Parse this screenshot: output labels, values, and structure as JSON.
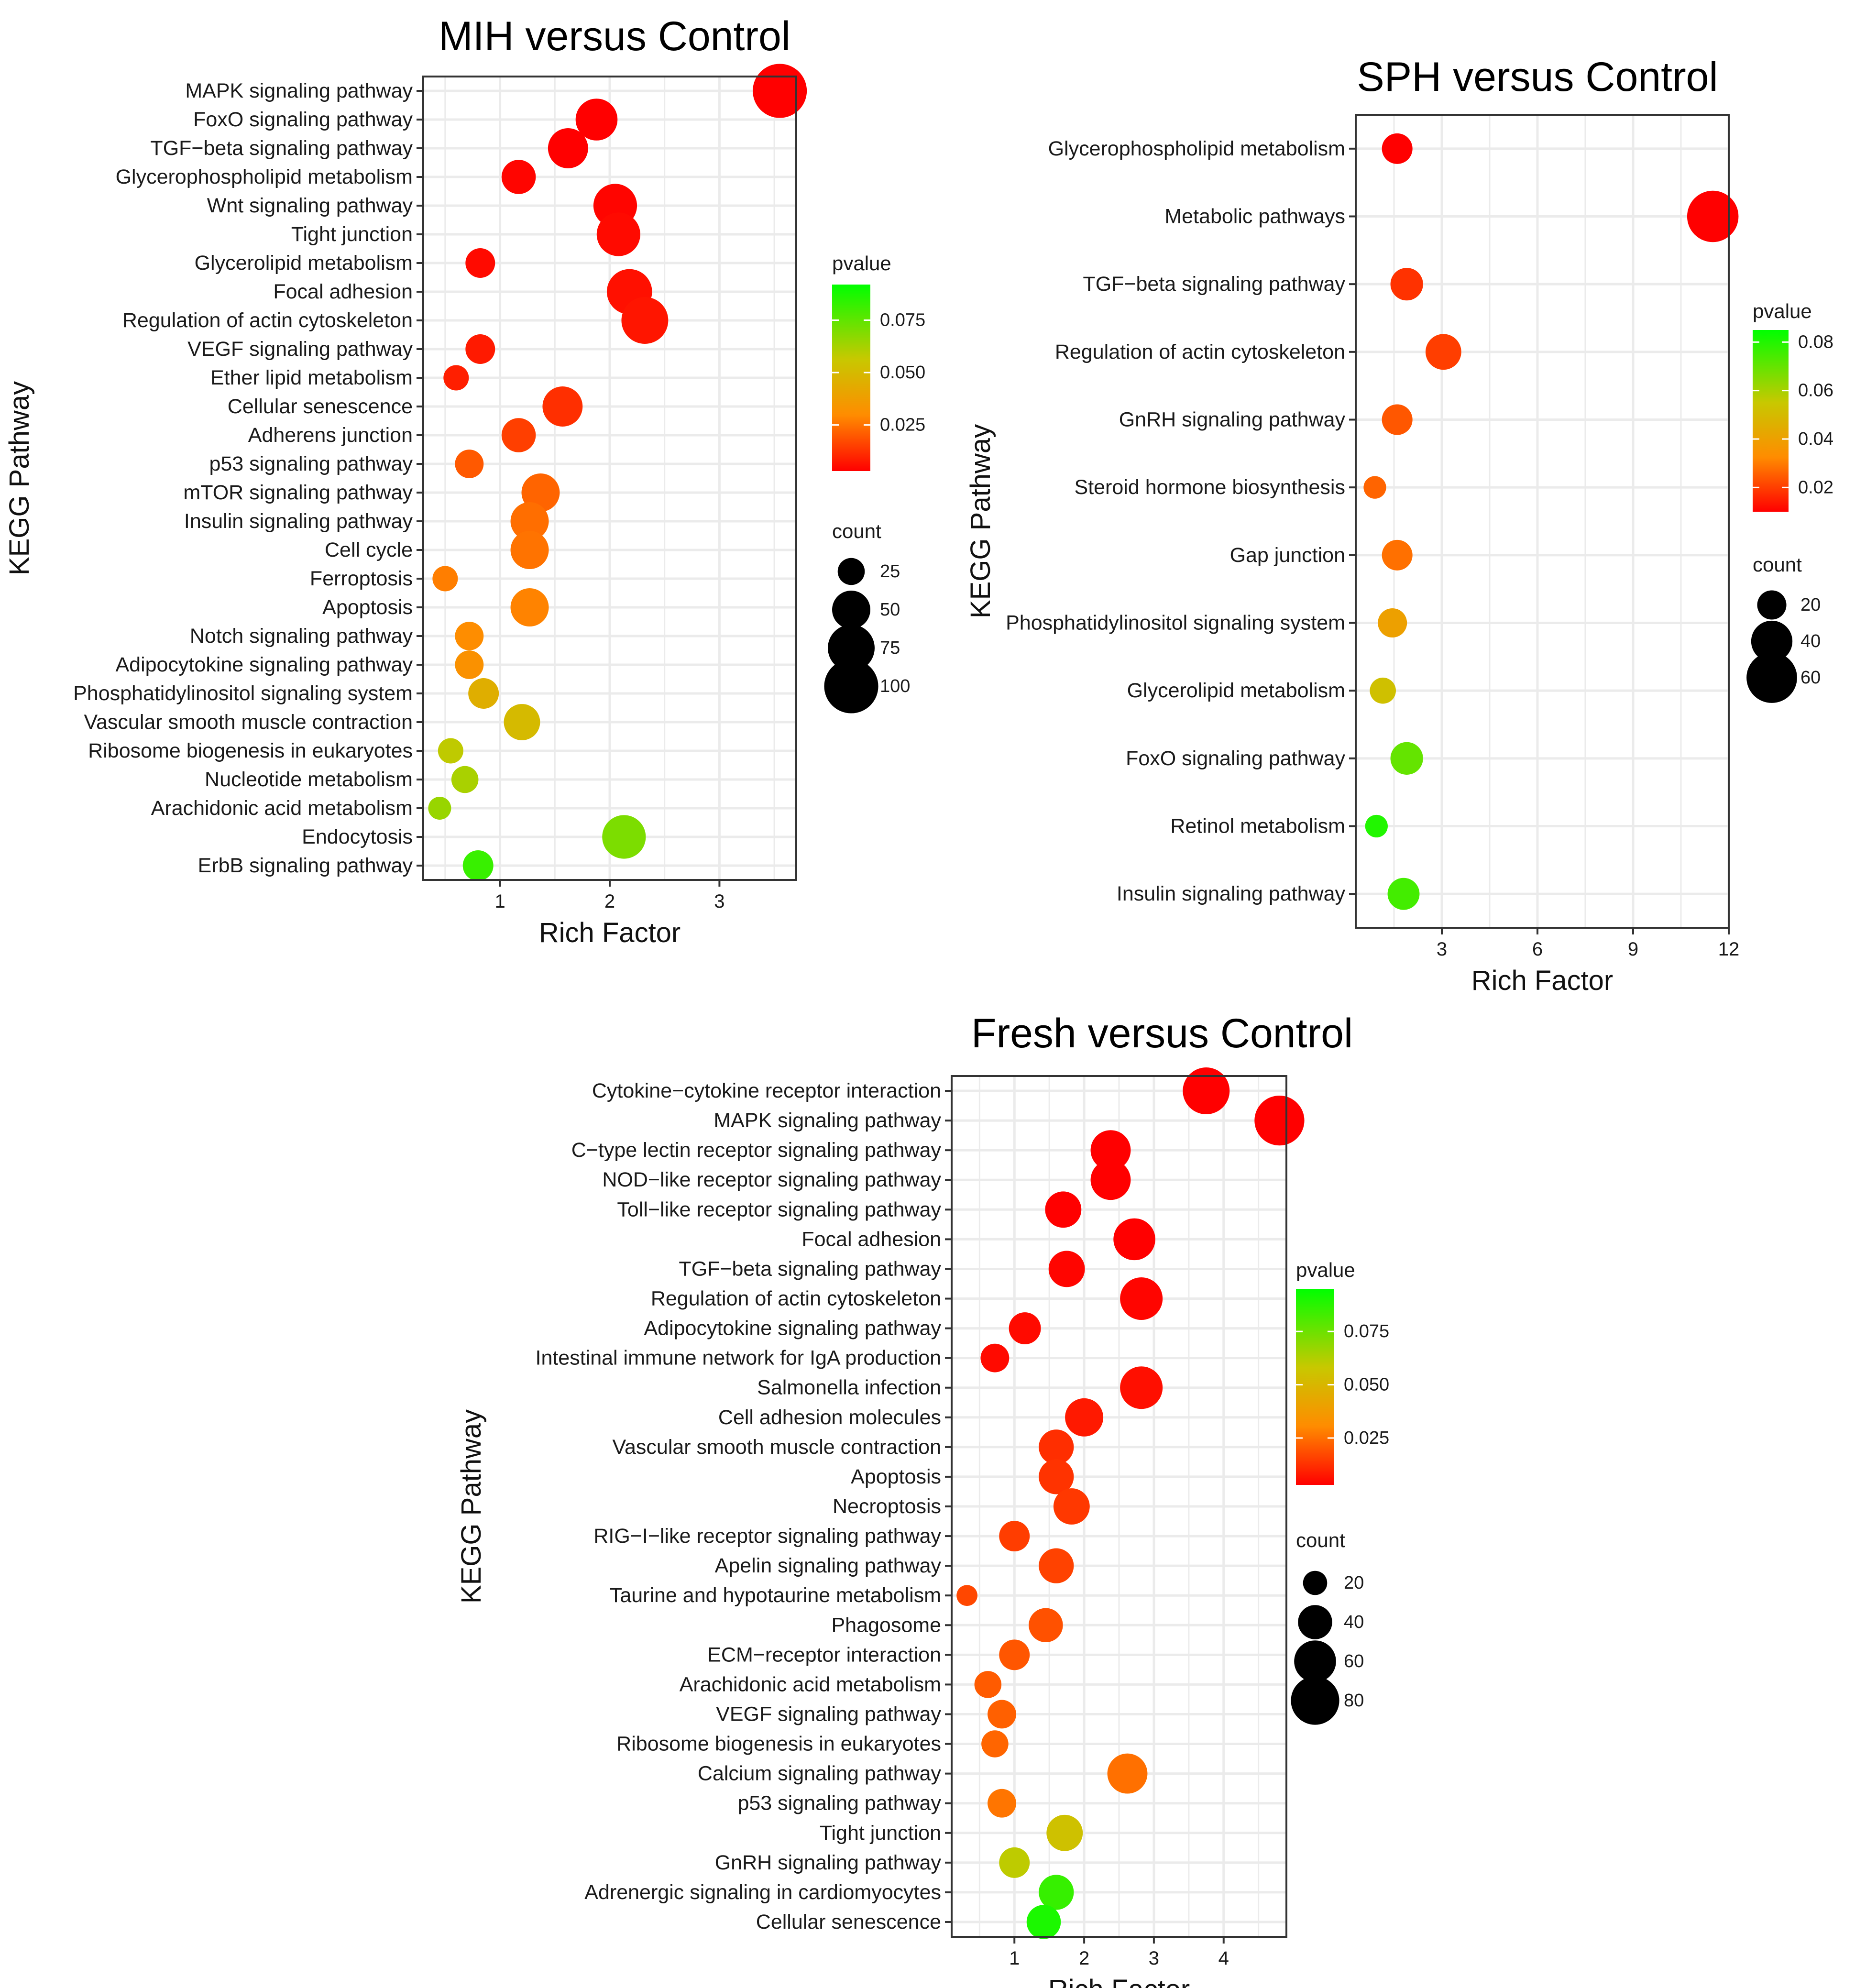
{
  "colors": {
    "low_p": "#ff0000",
    "mid_p": "#ff8c00",
    "mid2_p": "#c8c800",
    "high_p": "#00ff00",
    "grid": "#ebebeb",
    "panel_border": "#333333"
  },
  "chart_data": [
    {
      "id": "mih",
      "type": "scatter",
      "title": "MIH versus Control",
      "xlabel": "Rich Factor",
      "ylabel": "KEGG Pathway",
      "xlim": [
        0.3,
        3.7
      ],
      "xticks": [
        1,
        2,
        3
      ],
      "grid": true,
      "legend": {
        "color_title": "pvalue",
        "color_ticks": [
          "0.075",
          "0.050",
          "0.025"
        ],
        "color_tick_values": [
          0.075,
          0.05,
          0.025
        ],
        "pmin": 0.003,
        "pmax": 0.092,
        "size_title": "count",
        "size_ticks": [
          "25",
          "50",
          "75",
          "100"
        ],
        "size_tick_values": [
          25,
          50,
          75,
          100
        ],
        "position": "right"
      },
      "points": [
        {
          "pathway": "MAPK signaling pathway",
          "rich_factor": 3.55,
          "count": 100,
          "pvalue": 0.001
        },
        {
          "pathway": "FoxO signaling pathway",
          "rich_factor": 1.88,
          "count": 60,
          "pvalue": 0.002
        },
        {
          "pathway": "TGF−beta signaling pathway",
          "rich_factor": 1.62,
          "count": 55,
          "pvalue": 0.003
        },
        {
          "pathway": "Glycerophospholipid metabolism",
          "rich_factor": 1.17,
          "count": 40,
          "pvalue": 0.004
        },
        {
          "pathway": "Wnt signaling pathway",
          "rich_factor": 2.05,
          "count": 65,
          "pvalue": 0.004
        },
        {
          "pathway": "Tight junction",
          "rich_factor": 2.08,
          "count": 65,
          "pvalue": 0.005
        },
        {
          "pathway": "Glycerolipid metabolism",
          "rich_factor": 0.82,
          "count": 30,
          "pvalue": 0.005
        },
        {
          "pathway": "Focal adhesion",
          "rich_factor": 2.18,
          "count": 70,
          "pvalue": 0.006
        },
        {
          "pathway": "Regulation of actin cytoskeleton",
          "rich_factor": 2.32,
          "count": 75,
          "pvalue": 0.007
        },
        {
          "pathway": "VEGF signaling pathway",
          "rich_factor": 0.82,
          "count": 30,
          "pvalue": 0.008
        },
        {
          "pathway": "Ether lipid metabolism",
          "rich_factor": 0.6,
          "count": 22,
          "pvalue": 0.009
        },
        {
          "pathway": "Cellular senescence",
          "rich_factor": 1.57,
          "count": 55,
          "pvalue": 0.012
        },
        {
          "pathway": "Adherens junction",
          "rich_factor": 1.17,
          "count": 40,
          "pvalue": 0.015
        },
        {
          "pathway": "p53 signaling pathway",
          "rich_factor": 0.72,
          "count": 28,
          "pvalue": 0.02
        },
        {
          "pathway": "mTOR signaling pathway",
          "rich_factor": 1.37,
          "count": 50,
          "pvalue": 0.022
        },
        {
          "pathway": "Insulin signaling pathway",
          "rich_factor": 1.27,
          "count": 50,
          "pvalue": 0.024
        },
        {
          "pathway": "Cell cycle",
          "rich_factor": 1.27,
          "count": 50,
          "pvalue": 0.025
        },
        {
          "pathway": "Ferroptosis",
          "rich_factor": 0.5,
          "count": 22,
          "pvalue": 0.027
        },
        {
          "pathway": "Apoptosis",
          "rich_factor": 1.27,
          "count": 50,
          "pvalue": 0.028
        },
        {
          "pathway": "Notch signaling pathway",
          "rich_factor": 0.72,
          "count": 28,
          "pvalue": 0.03
        },
        {
          "pathway": "Adipocytokine signaling pathway",
          "rich_factor": 0.72,
          "count": 28,
          "pvalue": 0.032
        },
        {
          "pathway": "Phosphatidylinositol signaling system",
          "rich_factor": 0.85,
          "count": 32,
          "pvalue": 0.045
        },
        {
          "pathway": "Vascular smooth muscle contraction",
          "rich_factor": 1.2,
          "count": 45,
          "pvalue": 0.05
        },
        {
          "pathway": "Ribosome biogenesis in eukaryotes",
          "rich_factor": 0.55,
          "count": 22,
          "pvalue": 0.058
        },
        {
          "pathway": "Nucleotide metabolism",
          "rich_factor": 0.68,
          "count": 25,
          "pvalue": 0.062
        },
        {
          "pathway": "Arachidonic acid metabolism",
          "rich_factor": 0.45,
          "count": 18,
          "pvalue": 0.065
        },
        {
          "pathway": "Endocytosis",
          "rich_factor": 2.13,
          "count": 65,
          "pvalue": 0.07
        },
        {
          "pathway": "ErbB signaling pathway",
          "rich_factor": 0.8,
          "count": 32,
          "pvalue": 0.082
        }
      ]
    },
    {
      "id": "sph",
      "type": "scatter",
      "title": "SPH versus Control",
      "xlabel": "Rich Factor",
      "ylabel": "KEGG Pathway",
      "xlim": [
        0.3,
        12.0
      ],
      "xticks": [
        3,
        6,
        9,
        12
      ],
      "grid": true,
      "legend": {
        "color_title": "pvalue",
        "color_ticks": [
          "0.08",
          "0.06",
          "0.04",
          "0.02"
        ],
        "color_tick_values": [
          0.08,
          0.06,
          0.04,
          0.02
        ],
        "pmin": 0.01,
        "pmax": 0.085,
        "size_title": "count",
        "size_ticks": [
          "20",
          "40",
          "60"
        ],
        "size_tick_values": [
          20,
          40,
          60
        ],
        "position": "right"
      },
      "points": [
        {
          "pathway": "Glycerophospholipid metabolism",
          "rich_factor": 1.6,
          "count": 22,
          "pvalue": 0.005
        },
        {
          "pathway": "Metabolic pathways",
          "rich_factor": 11.5,
          "count": 62,
          "pvalue": 0.008
        },
        {
          "pathway": "TGF−beta signaling pathway",
          "rich_factor": 1.9,
          "count": 25,
          "pvalue": 0.018
        },
        {
          "pathway": "Regulation of actin cytoskeleton",
          "rich_factor": 3.05,
          "count": 30,
          "pvalue": 0.02
        },
        {
          "pathway": "GnRH signaling pathway",
          "rich_factor": 1.6,
          "count": 22,
          "pvalue": 0.024
        },
        {
          "pathway": "Steroid hormone biosynthesis",
          "rich_factor": 0.9,
          "count": 12,
          "pvalue": 0.026
        },
        {
          "pathway": "Gap junction",
          "rich_factor": 1.6,
          "count": 22,
          "pvalue": 0.028
        },
        {
          "pathway": "Phosphatidylinositol signaling system",
          "rich_factor": 1.45,
          "count": 20,
          "pvalue": 0.04
        },
        {
          "pathway": "Glycerolipid metabolism",
          "rich_factor": 1.15,
          "count": 16,
          "pvalue": 0.052
        },
        {
          "pathway": "FoxO signaling pathway",
          "rich_factor": 1.9,
          "count": 25,
          "pvalue": 0.07
        },
        {
          "pathway": "Retinol metabolism",
          "rich_factor": 0.95,
          "count": 12,
          "pvalue": 0.08
        },
        {
          "pathway": "Insulin signaling pathway",
          "rich_factor": 1.8,
          "count": 24,
          "pvalue": 0.075
        }
      ]
    },
    {
      "id": "fresh",
      "type": "scatter",
      "title": "Fresh versus Control",
      "xlabel": "Rich Factor",
      "ylabel": "KEGG Pathway",
      "xlim": [
        0.1,
        4.9
      ],
      "xticks": [
        1,
        2,
        3,
        4
      ],
      "grid": true,
      "legend": {
        "color_title": "pvalue",
        "color_ticks": [
          "0.075",
          "0.050",
          "0.025"
        ],
        "color_tick_values": [
          0.075,
          0.05,
          0.025
        ],
        "pmin": 0.003,
        "pmax": 0.095,
        "size_title": "count",
        "size_ticks": [
          "20",
          "40",
          "60",
          "80"
        ],
        "size_tick_values": [
          20,
          40,
          60,
          80
        ],
        "position": "right"
      },
      "points": [
        {
          "pathway": "Cytokine−cytokine receptor interaction",
          "rich_factor": 3.75,
          "count": 75,
          "pvalue": 0.001
        },
        {
          "pathway": "MAPK signaling pathway",
          "rich_factor": 4.8,
          "count": 85,
          "pvalue": 0.001
        },
        {
          "pathway": "C−type lectin receptor signaling pathway",
          "rich_factor": 2.38,
          "count": 55,
          "pvalue": 0.002
        },
        {
          "pathway": "NOD−like receptor signaling pathway",
          "rich_factor": 2.38,
          "count": 55,
          "pvalue": 0.002
        },
        {
          "pathway": "Toll−like receptor signaling pathway",
          "rich_factor": 1.7,
          "count": 45,
          "pvalue": 0.003
        },
        {
          "pathway": "Focal adhesion",
          "rich_factor": 2.72,
          "count": 60,
          "pvalue": 0.003
        },
        {
          "pathway": "TGF−beta signaling pathway",
          "rich_factor": 1.75,
          "count": 45,
          "pvalue": 0.004
        },
        {
          "pathway": "Regulation of actin cytoskeleton",
          "rich_factor": 2.82,
          "count": 62,
          "pvalue": 0.004
        },
        {
          "pathway": "Adipocytokine signaling pathway",
          "rich_factor": 1.15,
          "count": 35,
          "pvalue": 0.005
        },
        {
          "pathway": "Intestinal immune network for IgA production",
          "rich_factor": 0.72,
          "count": 28,
          "pvalue": 0.005
        },
        {
          "pathway": "Salmonella infection",
          "rich_factor": 2.82,
          "count": 62,
          "pvalue": 0.006
        },
        {
          "pathway": "Cell adhesion molecules",
          "rich_factor": 2.0,
          "count": 50,
          "pvalue": 0.008
        },
        {
          "pathway": "Vascular smooth muscle contraction",
          "rich_factor": 1.6,
          "count": 42,
          "pvalue": 0.012
        },
        {
          "pathway": "Apoptosis",
          "rich_factor": 1.6,
          "count": 42,
          "pvalue": 0.013
        },
        {
          "pathway": "Necroptosis",
          "rich_factor": 1.82,
          "count": 45,
          "pvalue": 0.014
        },
        {
          "pathway": "RIG−I−like receptor signaling pathway",
          "rich_factor": 1.0,
          "count": 32,
          "pvalue": 0.015
        },
        {
          "pathway": "Apelin signaling pathway",
          "rich_factor": 1.6,
          "count": 42,
          "pvalue": 0.016
        },
        {
          "pathway": "Taurine and hypotaurine metabolism",
          "rich_factor": 0.32,
          "count": 15,
          "pvalue": 0.017
        },
        {
          "pathway": "Phagosome",
          "rich_factor": 1.45,
          "count": 40,
          "pvalue": 0.019
        },
        {
          "pathway": "ECM−receptor interaction",
          "rich_factor": 1.0,
          "count": 32,
          "pvalue": 0.02
        },
        {
          "pathway": "Arachidonic acid metabolism",
          "rich_factor": 0.62,
          "count": 25,
          "pvalue": 0.021
        },
        {
          "pathway": "VEGF signaling pathway",
          "rich_factor": 0.82,
          "count": 28,
          "pvalue": 0.022
        },
        {
          "pathway": "Ribosome biogenesis in eukaryotes",
          "rich_factor": 0.72,
          "count": 25,
          "pvalue": 0.023
        },
        {
          "pathway": "Calcium signaling pathway",
          "rich_factor": 2.62,
          "count": 55,
          "pvalue": 0.025
        },
        {
          "pathway": "p53 signaling pathway",
          "rich_factor": 0.82,
          "count": 28,
          "pvalue": 0.026
        },
        {
          "pathway": "Tight junction",
          "rich_factor": 1.72,
          "count": 45,
          "pvalue": 0.055
        },
        {
          "pathway": "GnRH signaling pathway",
          "rich_factor": 1.0,
          "count": 32,
          "pvalue": 0.06
        },
        {
          "pathway": "Adrenergic signaling in cardiomyocytes",
          "rich_factor": 1.6,
          "count": 42,
          "pvalue": 0.085
        },
        {
          "pathway": "Cellular senescence",
          "rich_factor": 1.42,
          "count": 40,
          "pvalue": 0.09
        }
      ]
    }
  ]
}
